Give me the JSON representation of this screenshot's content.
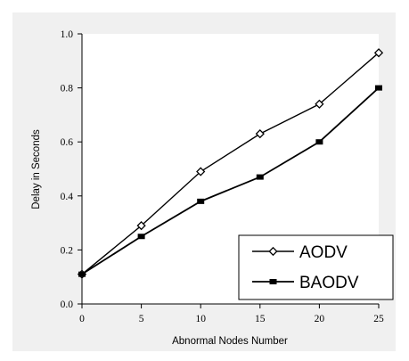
{
  "chart_data": {
    "type": "line",
    "title": "",
    "xlabel": "Abnormal Nodes Number",
    "ylabel": "Delay in Seconds",
    "x": [
      0,
      5,
      10,
      15,
      20,
      25
    ],
    "xticks": [
      "0",
      "5",
      "10",
      "15",
      "20",
      "25"
    ],
    "yticks": [
      "0.0",
      "0.2",
      "0.4",
      "0.6",
      "0.8",
      "1.0"
    ],
    "xlim": [
      0,
      25
    ],
    "ylim": [
      0,
      1.0
    ],
    "grid": false,
    "legend_position": "bottom-right",
    "series": [
      {
        "name": "AODV",
        "values": [
          0.11,
          0.29,
          0.49,
          0.63,
          0.74,
          0.93
        ],
        "marker": "open-diamond",
        "color": "#000000"
      },
      {
        "name": "BAODV",
        "values": [
          0.11,
          0.25,
          0.38,
          0.47,
          0.6,
          0.8
        ],
        "marker": "filled-square",
        "color": "#000000"
      }
    ]
  },
  "colors": {
    "background": "#f0f0f0",
    "plot_area": "#ffffff",
    "line": "#000000"
  }
}
